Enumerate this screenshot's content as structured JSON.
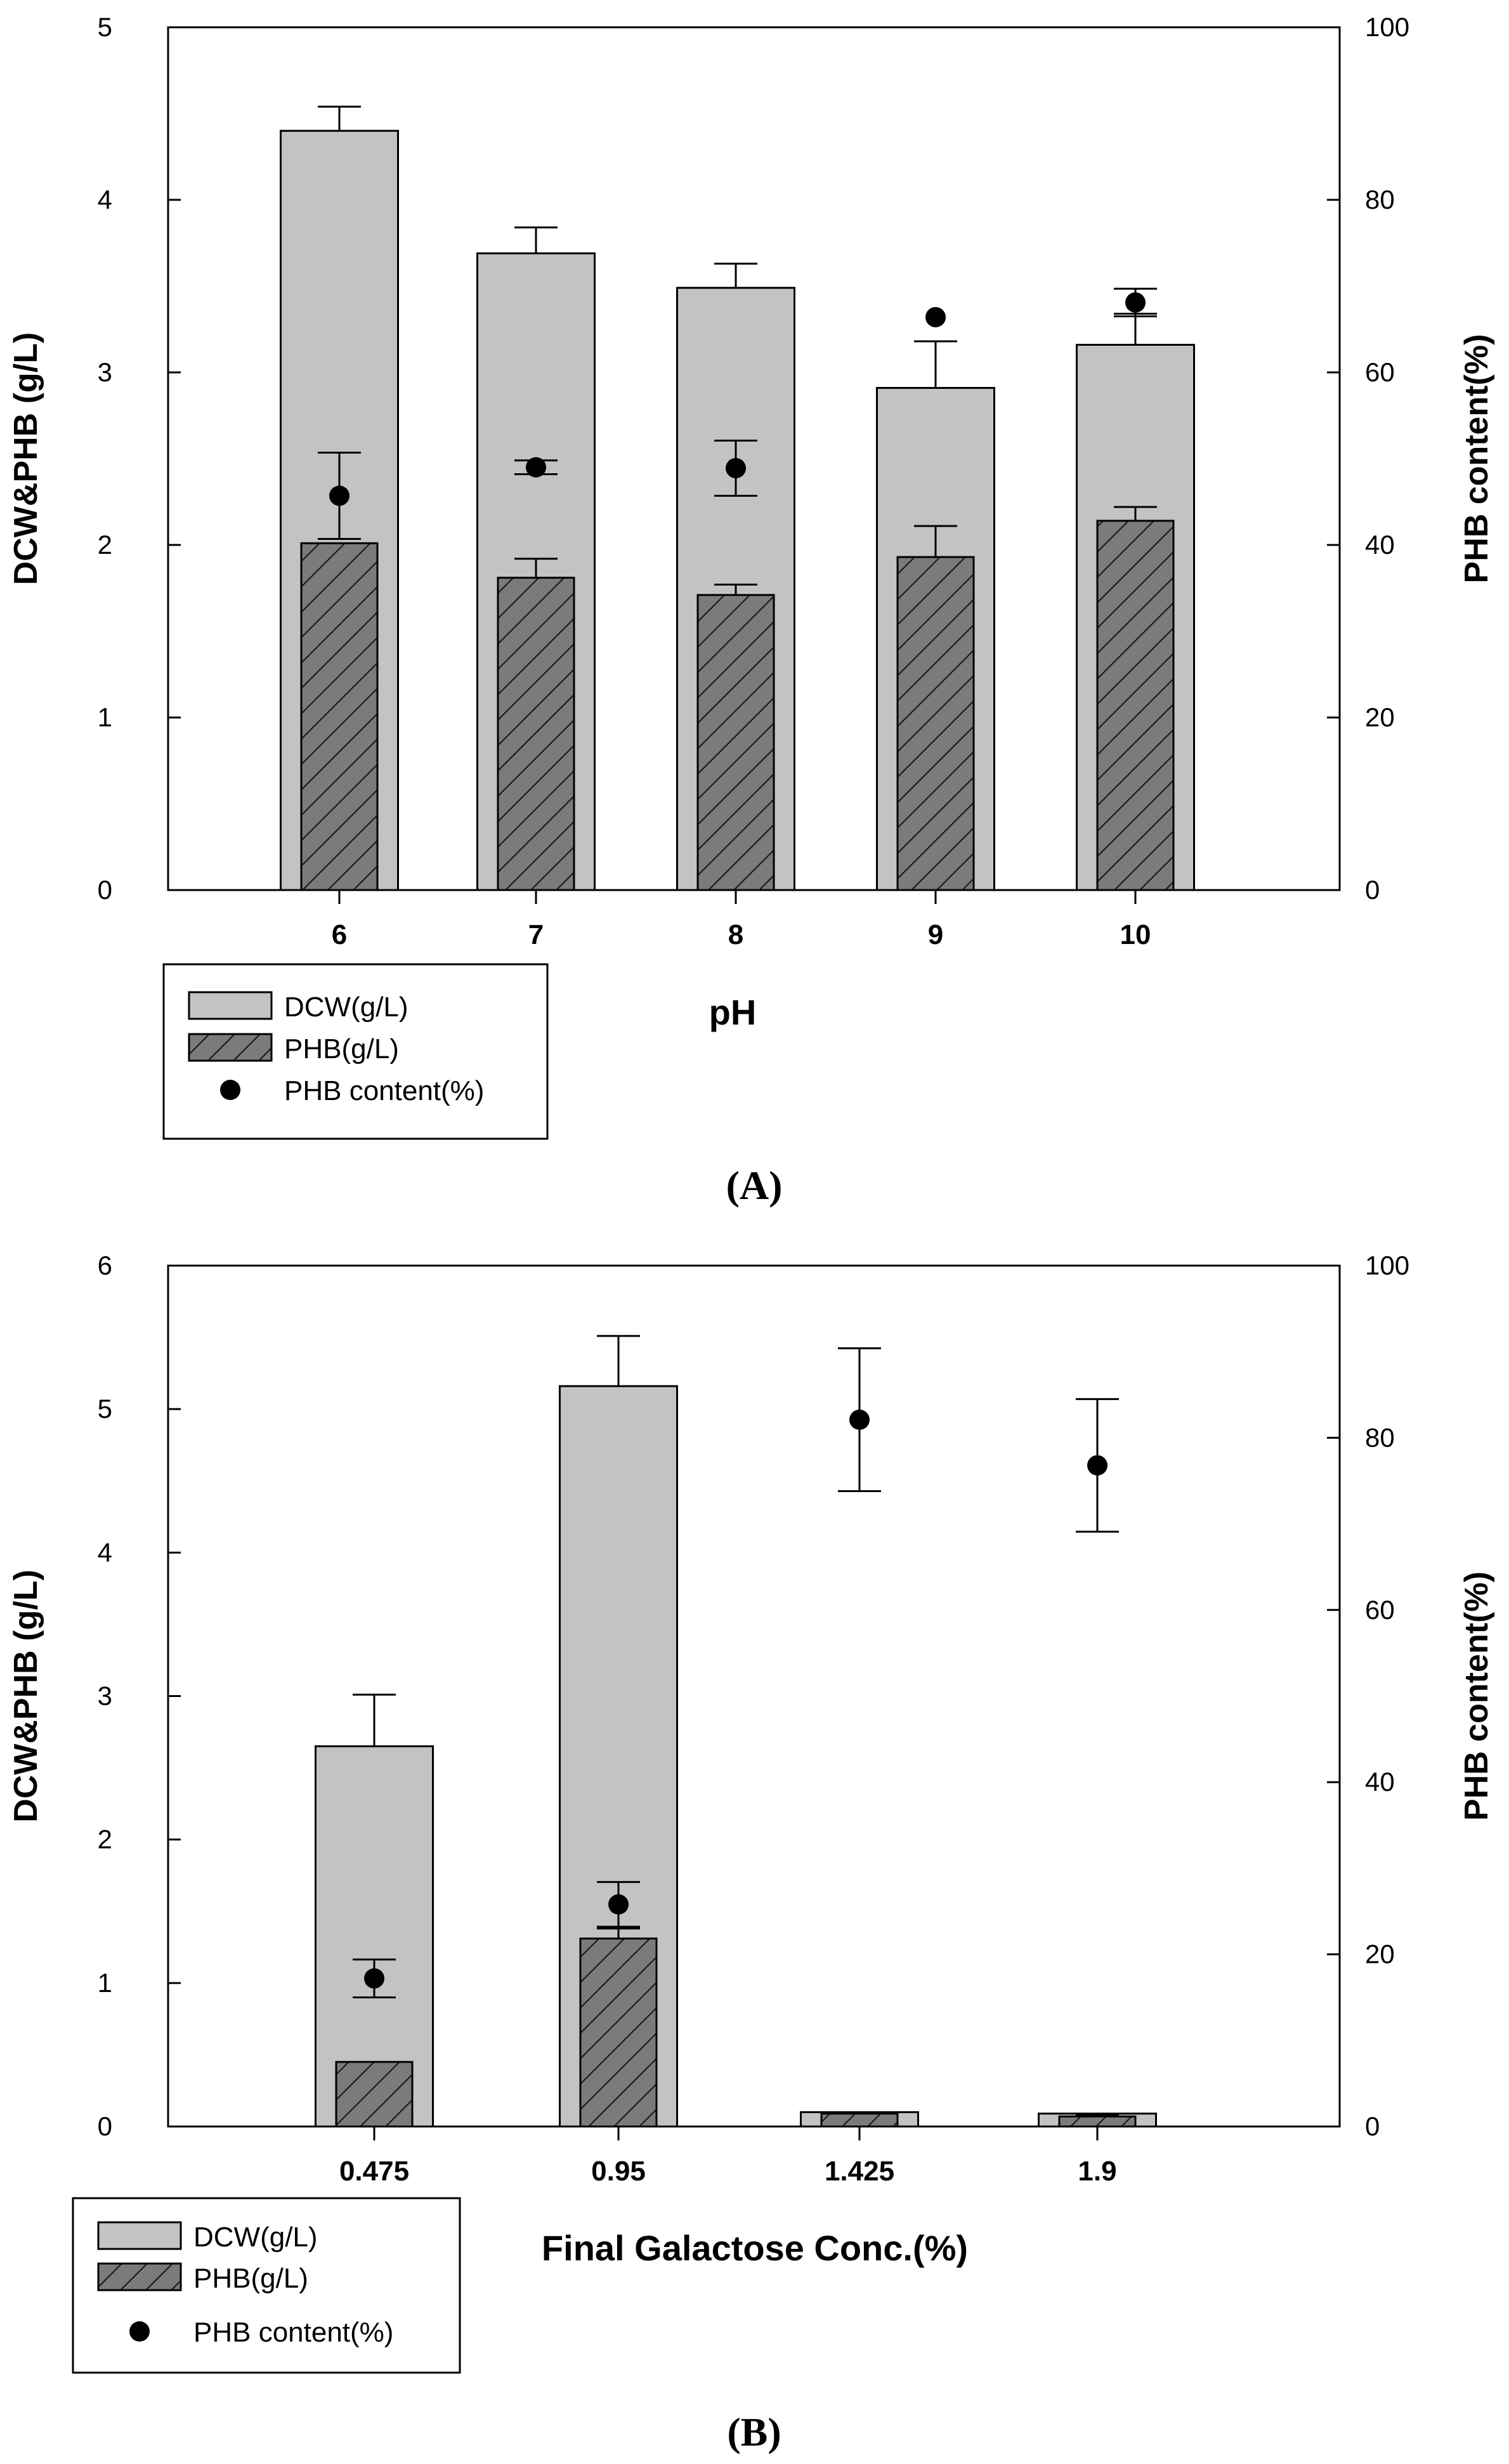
{
  "colors": {
    "dcw_fill": "#c3c3c3",
    "phb_fill": "#7b7b7b",
    "axis": "#000000",
    "background": "#ffffff"
  },
  "chart_data": [
    {
      "type": "bar",
      "panel_label": "(A)",
      "panel_letter": "A",
      "categories": [
        "6",
        "7",
        "8",
        "9",
        "10"
      ],
      "xlabel": "pH",
      "ylabel_left": "DCW&PHB (g/L)",
      "ylabel_right": "PHB content(%)",
      "ylim_left": [
        0,
        5
      ],
      "ylim_right": [
        0,
        100
      ],
      "yticks_left": [
        0,
        1,
        2,
        3,
        4,
        5
      ],
      "yticks_right": [
        0,
        20,
        40,
        60,
        80,
        100
      ],
      "legend_position": "bottom-left",
      "legend": [
        {
          "label": "DCW(g/L)",
          "kind": "bar-light"
        },
        {
          "label": "PHB(g/L)",
          "kind": "bar-hatched"
        },
        {
          "label": "PHB content(%)",
          "kind": "dot"
        }
      ],
      "series": [
        {
          "name": "DCW(g/L)",
          "axis": "left",
          "values": [
            4.4,
            3.69,
            3.49,
            2.91,
            3.16
          ],
          "errors": [
            0.14,
            0.15,
            0.14,
            0.27,
            0.18
          ]
        },
        {
          "name": "PHB(g/L)",
          "axis": "left",
          "values": [
            2.01,
            1.81,
            1.71,
            1.93,
            2.14
          ],
          "errors": [
            0.0,
            0.11,
            0.06,
            0.18,
            0.08
          ]
        },
        {
          "name": "PHB content(%)",
          "axis": "right",
          "values": [
            45.7,
            49.0,
            48.9,
            66.4,
            68.1
          ],
          "errors": [
            5.0,
            0.8,
            3.2,
            0.0,
            1.6
          ]
        }
      ]
    },
    {
      "type": "bar",
      "panel_label": "(B)",
      "panel_letter": "B",
      "categories": [
        "0.475",
        "0.95",
        "1.425",
        "1.9"
      ],
      "xlabel": "Final Galactose Conc.(%)",
      "ylabel_left": "DCW&PHB (g/L)",
      "ylabel_right": "PHB content(%)",
      "ylim_left": [
        0,
        6
      ],
      "ylim_right": [
        0,
        100
      ],
      "yticks_left": [
        0,
        1,
        2,
        3,
        4,
        5,
        6
      ],
      "yticks_right": [
        0,
        20,
        40,
        60,
        80,
        100
      ],
      "legend_position": "bottom-left",
      "legend": [
        {
          "label": "DCW(g/L)",
          "kind": "bar-light"
        },
        {
          "label": "PHB(g/L)",
          "kind": "bar-hatched"
        },
        {
          "label": "PHB content(%)",
          "kind": "dot"
        }
      ],
      "series": [
        {
          "name": "DCW(g/L)",
          "axis": "left",
          "values": [
            2.65,
            5.16,
            0.1,
            0.09
          ],
          "errors": [
            0.36,
            0.35,
            0.0,
            0.0
          ]
        },
        {
          "name": "PHB(g/L)",
          "axis": "left",
          "values": [
            0.45,
            1.31,
            0.09,
            0.07
          ],
          "errors": [
            0.0,
            0.07,
            0.0,
            0.01
          ]
        },
        {
          "name": "PHB content(%)",
          "axis": "right",
          "values": [
            17.2,
            25.8,
            82.1,
            76.8
          ],
          "errors": [
            2.2,
            2.6,
            8.3,
            7.7
          ]
        }
      ]
    }
  ]
}
